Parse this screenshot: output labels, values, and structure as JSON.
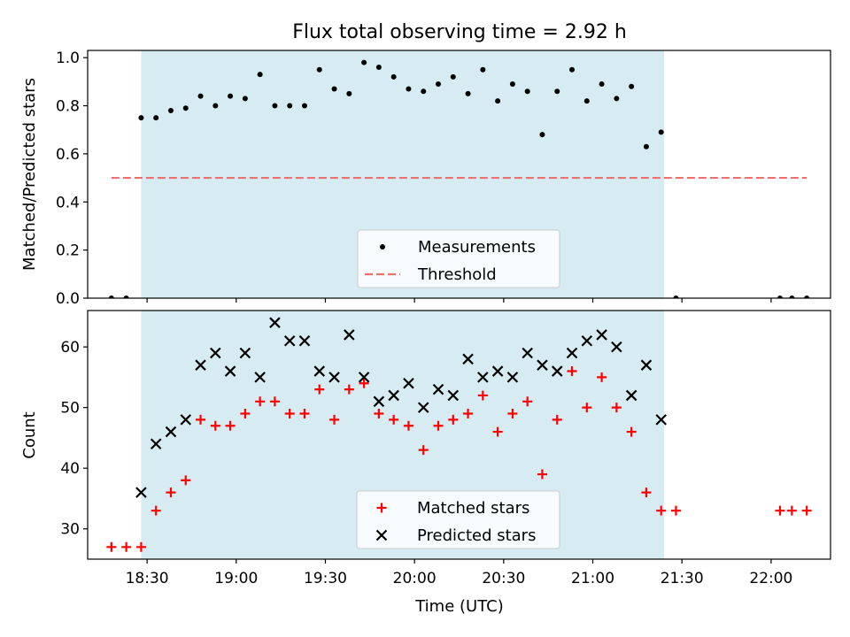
{
  "chart_data": [
    {
      "type": "scatter",
      "title": "Flux total observing time = 2.92 h",
      "xlabel": "",
      "ylabel": "Matched/Predicted stars",
      "ylim": [
        0,
        1.03
      ],
      "yticks": [
        "0.0",
        "0.2",
        "0.4",
        "0.6",
        "0.8",
        "1.0"
      ],
      "shaded_interval": [
        "18:28",
        "21:24"
      ],
      "legend": {
        "placement": "lower-center",
        "entries": [
          "Measurements",
          "Threshold"
        ]
      },
      "series": [
        {
          "name": "Measurements",
          "marker": "dot",
          "color": "#000000",
          "points": [
            [
              "18:18",
              0.0
            ],
            [
              "18:23",
              0.0
            ],
            [
              "18:28",
              0.75
            ],
            [
              "18:33",
              0.75
            ],
            [
              "18:38",
              0.78
            ],
            [
              "18:43",
              0.79
            ],
            [
              "18:48",
              0.84
            ],
            [
              "18:53",
              0.8
            ],
            [
              "18:58",
              0.84
            ],
            [
              "19:03",
              0.83
            ],
            [
              "19:08",
              0.93
            ],
            [
              "19:13",
              0.8
            ],
            [
              "19:18",
              0.8
            ],
            [
              "19:23",
              0.8
            ],
            [
              "19:28",
              0.95
            ],
            [
              "19:33",
              0.87
            ],
            [
              "19:38",
              0.85
            ],
            [
              "19:43",
              0.98
            ],
            [
              "19:48",
              0.96
            ],
            [
              "19:53",
              0.92
            ],
            [
              "19:58",
              0.87
            ],
            [
              "20:03",
              0.86
            ],
            [
              "20:08",
              0.89
            ],
            [
              "20:13",
              0.92
            ],
            [
              "20:18",
              0.85
            ],
            [
              "20:23",
              0.95
            ],
            [
              "20:28",
              0.82
            ],
            [
              "20:33",
              0.89
            ],
            [
              "20:38",
              0.86
            ],
            [
              "20:43",
              0.68
            ],
            [
              "20:48",
              0.86
            ],
            [
              "20:53",
              0.95
            ],
            [
              "20:58",
              0.82
            ],
            [
              "21:03",
              0.89
            ],
            [
              "21:08",
              0.83
            ],
            [
              "21:13",
              0.88
            ],
            [
              "21:18",
              0.63
            ],
            [
              "21:23",
              0.69
            ],
            [
              "21:28",
              0.0
            ],
            [
              "22:03",
              0.0
            ],
            [
              "22:07",
              0.0
            ],
            [
              "22:12",
              0.0
            ]
          ]
        },
        {
          "name": "Threshold",
          "marker": "dashed-line",
          "color": "#f07070",
          "points": [
            [
              "18:18",
              0.5
            ],
            [
              "22:12",
              0.5
            ]
          ]
        }
      ]
    },
    {
      "type": "scatter",
      "title": "",
      "xlabel": "Time (UTC)",
      "ylabel": "Count",
      "ylim": [
        25,
        66
      ],
      "yticks": [
        "30",
        "40",
        "50",
        "60"
      ],
      "xlim": [
        "18:10",
        "22:20"
      ],
      "xticks": [
        "18:30",
        "19:00",
        "19:30",
        "20:00",
        "20:30",
        "21:00",
        "21:30",
        "22:00"
      ],
      "shaded_interval": [
        "18:28",
        "21:24"
      ],
      "legend": {
        "placement": "lower-center",
        "entries": [
          "Matched stars",
          "Predicted stars"
        ]
      },
      "series": [
        {
          "name": "Matched stars",
          "marker": "plus",
          "color": "#ff0000",
          "points": [
            [
              "18:18",
              27
            ],
            [
              "18:23",
              27
            ],
            [
              "18:28",
              27
            ],
            [
              "18:33",
              33
            ],
            [
              "18:38",
              36
            ],
            [
              "18:43",
              38
            ],
            [
              "18:48",
              48
            ],
            [
              "18:53",
              47
            ],
            [
              "18:58",
              47
            ],
            [
              "19:03",
              49
            ],
            [
              "19:08",
              51
            ],
            [
              "19:13",
              51
            ],
            [
              "19:18",
              49
            ],
            [
              "19:23",
              49
            ],
            [
              "19:28",
              53
            ],
            [
              "19:33",
              48
            ],
            [
              "19:38",
              53
            ],
            [
              "19:43",
              54
            ],
            [
              "19:48",
              49
            ],
            [
              "19:53",
              48
            ],
            [
              "19:58",
              47
            ],
            [
              "20:03",
              43
            ],
            [
              "20:08",
              47
            ],
            [
              "20:13",
              48
            ],
            [
              "20:18",
              49
            ],
            [
              "20:23",
              52
            ],
            [
              "20:28",
              46
            ],
            [
              "20:33",
              49
            ],
            [
              "20:38",
              51
            ],
            [
              "20:43",
              39
            ],
            [
              "20:48",
              48
            ],
            [
              "20:53",
              56
            ],
            [
              "20:58",
              50
            ],
            [
              "21:03",
              55
            ],
            [
              "21:08",
              50
            ],
            [
              "21:13",
              46
            ],
            [
              "21:18",
              36
            ],
            [
              "21:23",
              33
            ],
            [
              "21:28",
              33
            ],
            [
              "22:03",
              33
            ],
            [
              "22:07",
              33
            ],
            [
              "22:12",
              33
            ]
          ]
        },
        {
          "name": "Predicted stars",
          "marker": "x",
          "color": "#000000",
          "points": [
            [
              "18:28",
              36
            ],
            [
              "18:33",
              44
            ],
            [
              "18:38",
              46
            ],
            [
              "18:43",
              48
            ],
            [
              "18:48",
              57
            ],
            [
              "18:53",
              59
            ],
            [
              "18:58",
              56
            ],
            [
              "19:03",
              59
            ],
            [
              "19:08",
              55
            ],
            [
              "19:13",
              64
            ],
            [
              "19:18",
              61
            ],
            [
              "19:23",
              61
            ],
            [
              "19:28",
              56
            ],
            [
              "19:33",
              55
            ],
            [
              "19:38",
              62
            ],
            [
              "19:43",
              55
            ],
            [
              "19:48",
              51
            ],
            [
              "19:53",
              52
            ],
            [
              "19:58",
              54
            ],
            [
              "20:03",
              50
            ],
            [
              "20:08",
              53
            ],
            [
              "20:13",
              52
            ],
            [
              "20:18",
              58
            ],
            [
              "20:23",
              55
            ],
            [
              "20:28",
              56
            ],
            [
              "20:33",
              55
            ],
            [
              "20:38",
              59
            ],
            [
              "20:43",
              57
            ],
            [
              "20:48",
              56
            ],
            [
              "20:53",
              59
            ],
            [
              "20:58",
              61
            ],
            [
              "21:03",
              62
            ],
            [
              "21:08",
              60
            ],
            [
              "21:13",
              52
            ],
            [
              "21:18",
              57
            ],
            [
              "21:23",
              48
            ]
          ]
        }
      ]
    }
  ],
  "colors": {
    "shade": "#add8e6",
    "measurements": "#000000",
    "threshold": "#f07070",
    "matched": "#ff0000",
    "predicted": "#000000"
  }
}
